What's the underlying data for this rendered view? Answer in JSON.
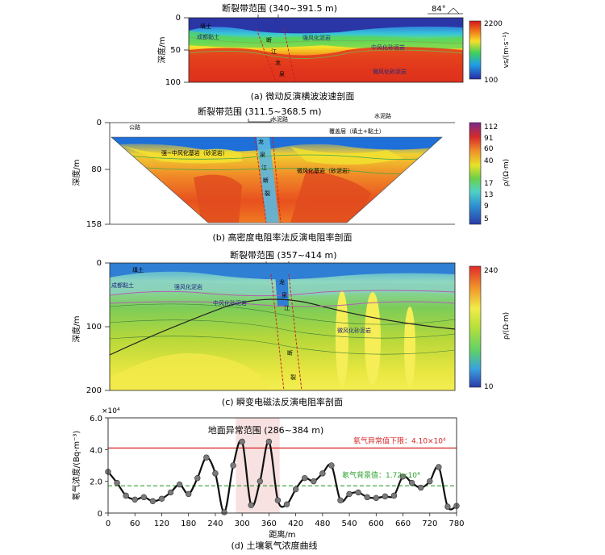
{
  "panels": {
    "a": {
      "caption": "(a) 微动反演横波波速剖面",
      "fault_label": "断裂带范围 (340~391.5 m)",
      "y_axis_label": "深度/m",
      "y_ticks": [
        "0",
        "50",
        "100"
      ],
      "colorbar_label": "vs/(m·s⁻¹)",
      "colorbar_ticks": [
        "2200",
        "100"
      ],
      "angle_label": "84°",
      "annotations": [
        "填土",
        "成都黏土",
        "强风化泥岩",
        "中风化砂泥岩",
        "微风化砂泥岩",
        "断",
        "江",
        "龙",
        "泉"
      ]
    },
    "b": {
      "caption": "(b) 高密度电阻率法反演电阻率剖面",
      "fault_label": "断裂带范围 (311.5~368.5 m)",
      "y_axis_label": "深度/m",
      "y_ticks": [
        "0",
        "80",
        "158"
      ],
      "colorbar_label": "ρ/(Ω·m)",
      "colorbar_ticks": [
        "112",
        "91",
        "60",
        "40",
        "17",
        "13",
        "9",
        "5"
      ],
      "annotations": [
        "公路",
        "水泥路",
        "水泥路",
        "覆盖层（填土+黏土）",
        "强−中风化基岩（砂泥岩）",
        "微风化基岩（砂泥岩）",
        "龙",
        "泉",
        "江",
        "断",
        "裂"
      ]
    },
    "c": {
      "caption": "(c) 瞬变电磁法反演电阻率剖面",
      "fault_label": "断裂带范围 (357~414 m)",
      "y_axis_label": "深度/m",
      "y_ticks": [
        "0",
        "100",
        "200"
      ],
      "colorbar_label": "ρ/(Ω·m)",
      "colorbar_ticks": [
        "240",
        "10"
      ],
      "annotations": [
        "填土",
        "成都黏土",
        "强风化泥岩",
        "中风化砂泥岩",
        "微风化砂泥岩",
        "龙",
        "泉",
        "江",
        "断",
        "裂"
      ]
    },
    "d": {
      "caption": "(d) 土壤氡气浓度曲线"
    }
  },
  "chart_data": [
    {
      "type": "line",
      "title": "",
      "xlabel": "距离/m",
      "ylabel": "氡气浓度/(Bq·m⁻³)",
      "y_multiplier": "×10⁴",
      "xlim": [
        0,
        780
      ],
      "ylim": [
        0,
        6.0
      ],
      "x_ticks": [
        0,
        60,
        120,
        180,
        240,
        300,
        360,
        420,
        480,
        540,
        600,
        660,
        720,
        780
      ],
      "y_ticks": [
        "0",
        "2.0",
        "4.0",
        "6.0"
      ],
      "shaded_region": {
        "x_start": 286,
        "x_end": 384,
        "label": "地面异常范围 (286~384 m)"
      },
      "threshold_lines": [
        {
          "label": "氡气异常值下限：4.10×10⁴",
          "value": 4.1,
          "color": "#d62728",
          "style": "solid"
        },
        {
          "label": "氡气背景值：1.72×10⁴",
          "value": 1.72,
          "color": "#2ca02c",
          "style": "dashed"
        }
      ],
      "series": [
        {
          "x": [
            0,
            20,
            40,
            60,
            80,
            100,
            120,
            140,
            160,
            180,
            200,
            220,
            240,
            260,
            280,
            300,
            320,
            340,
            360,
            380,
            400,
            420,
            440,
            460,
            480,
            500,
            520,
            540,
            560,
            580,
            600,
            620,
            640,
            660,
            680,
            700,
            720,
            740,
            760,
            780
          ],
          "values": [
            2.6,
            1.9,
            1.1,
            0.85,
            1.0,
            0.75,
            0.9,
            1.3,
            1.8,
            1.2,
            2.2,
            3.5,
            2.5,
            0.05,
            3.0,
            4.5,
            0.5,
            2.0,
            4.5,
            0.8,
            0.55,
            1.5,
            2.2,
            2.0,
            2.5,
            3.0,
            0.8,
            1.2,
            1.3,
            1.0,
            0.95,
            1.05,
            1.1,
            2.3,
            1.9,
            1.6,
            2.0,
            2.9,
            0.4,
            0.45
          ],
          "color": "#111111"
        }
      ]
    }
  ]
}
